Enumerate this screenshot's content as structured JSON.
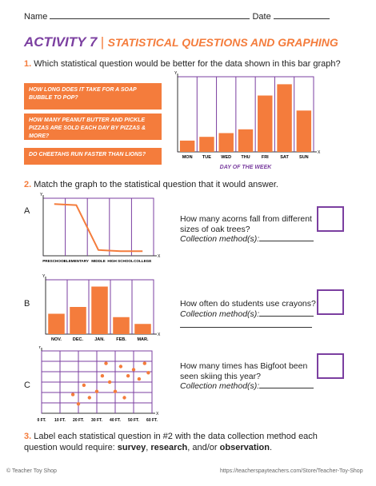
{
  "header": {
    "name_label": "Name",
    "date_label": "Date"
  },
  "title": {
    "activity": "ACTIVITY 7",
    "separator": "|",
    "subtitle": "STATISTICAL QUESTIONS AND GRAPHING"
  },
  "question1": {
    "number": "1.",
    "text": "Which statistical question would be better for the data shown in this bar graph?",
    "options": [
      "HOW LONG DOES IT TAKE FOR A SOAP BUBBLE TO POP?",
      "HOW MANY PEANUT BUTTER AND PICKLE PIZZAS ARE SOLD EACH DAY BY PIZZAS & MORE?",
      "DO CHEETAHS RUN FASTER THAN LIONS?"
    ]
  },
  "bar_graph": {
    "type": "bar",
    "y_axis_letter": "Y",
    "x_axis_letter": "X",
    "x_label": "DAY OF THE WEEK",
    "categories": [
      "MON",
      "TUE",
      "WED",
      "THU",
      "FRI",
      "SAT",
      "SUN"
    ],
    "values": [
      1.5,
      2,
      2.5,
      3,
      7.5,
      9,
      5.5
    ],
    "ylim": [
      0,
      10
    ],
    "color": "#f47c3c"
  },
  "question2": {
    "number": "2.",
    "text": "Match the graph to the statistical question that it would answer.",
    "items": [
      {
        "letter": "A",
        "question": "How many acorns fall from different sizes of oak trees?",
        "method": "Collection method(s):"
      },
      {
        "letter": "B",
        "question": "How often do students use crayons?",
        "method": "Collection method(s):"
      },
      {
        "letter": "C",
        "question": "How many times has Bigfoot been seen skiing this year?",
        "method": "Collection method(s):"
      }
    ]
  },
  "graph_a": {
    "type": "line",
    "y_axis_letter": "Y",
    "x_axis_letter": "X",
    "categories": [
      "PRESCHOOL",
      "ELEMENTARY",
      "MIDDLE",
      "HIGH SCHOOL",
      "COLLEGE"
    ],
    "values": [
      9,
      8.8,
      1,
      0.8,
      0.8
    ],
    "ylim": [
      0,
      10
    ],
    "color": "#f47c3c"
  },
  "graph_b": {
    "type": "bar",
    "y_axis_letter": "Y",
    "x_axis_letter": "X",
    "categories": [
      "NOV.",
      "DEC.",
      "JAN.",
      "FEB.",
      "MAR."
    ],
    "values": [
      3,
      4,
      7,
      2.5,
      1.5
    ],
    "ylim": [
      0,
      8
    ],
    "color": "#f47c3c"
  },
  "graph_c": {
    "type": "scatter",
    "y_axis_letter": "Y",
    "x_axis_letter": "X",
    "x": [
      17,
      20,
      23,
      26,
      30,
      33,
      35,
      37,
      40,
      43,
      45,
      47,
      50,
      53,
      56,
      58
    ],
    "values": [
      3,
      1.5,
      4.5,
      2.5,
      3.5,
      6,
      8,
      5,
      3.5,
      7.5,
      2.5,
      6,
      7,
      5.5,
      8,
      6.5
    ],
    "xlim": [
      0,
      60
    ],
    "ylim": [
      0,
      10
    ],
    "color": "#f47c3c",
    "xticks": [
      {
        "value": 0,
        "label": "0 FT."
      },
      {
        "value": 10,
        "label": "10 FT."
      },
      {
        "value": 20,
        "label": "20 FT."
      },
      {
        "value": 30,
        "label": "30 FT."
      },
      {
        "value": 40,
        "label": "40 FT."
      },
      {
        "value": 50,
        "label": "50 FT."
      },
      {
        "value": 60,
        "label": "60 FT."
      }
    ]
  },
  "question3": {
    "number": "3.",
    "parts": [
      "Label each statistical question in #2 with the data collection method each question would require: ",
      "survey",
      ", ",
      "research",
      ", and/or ",
      "observation",
      "."
    ]
  },
  "footer": {
    "copyright": "© Teacher Toy Shop",
    "url": "https://teacherspayteachers.com/Store/Teacher-Toy-Shop"
  }
}
